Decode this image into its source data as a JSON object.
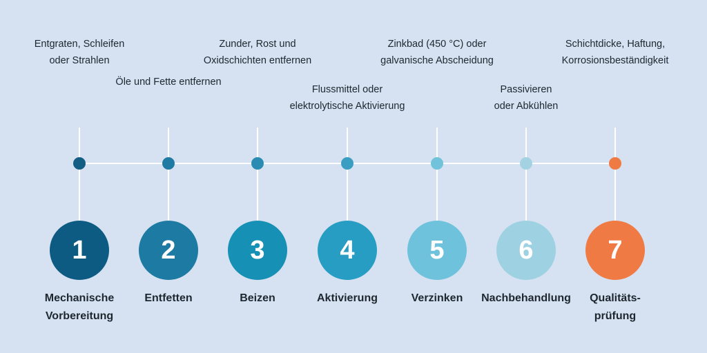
{
  "steps": [
    {
      "number": "1",
      "title_line1": "Mechanische",
      "title_line2": "Vorbereitung",
      "desc_line1": "Entgraten, Schleifen",
      "desc_line2": "oder Strahlen",
      "color": "#0d5a82",
      "dot_color": "#145e84"
    },
    {
      "number": "2",
      "title_line1": "Entfetten",
      "title_line2": "",
      "desc_line1": "Öle und Fette entfernen",
      "desc_line2": "",
      "color": "#1c7aa3",
      "dot_color": "#1f7ba3"
    },
    {
      "number": "3",
      "title_line1": "Beizen",
      "title_line2": "",
      "desc_line1": "Zunder, Rost und",
      "desc_line2": "Oxidschichten entfernen",
      "color": "#1690b5",
      "dot_color": "#2a8cb3"
    },
    {
      "number": "4",
      "title_line1": "Aktivierung",
      "title_line2": "",
      "desc_line1": "Flussmittel oder",
      "desc_line2": "elektrolytische Aktivierung",
      "color": "#279dc3",
      "dot_color": "#3a9dc2"
    },
    {
      "number": "5",
      "title_line1": "Verzinken",
      "title_line2": "",
      "desc_line1": "Zinkbad (450 °C) oder",
      "desc_line2": "galvanische Abscheidung",
      "color": "#6ec2dc",
      "dot_color": "#70c3db"
    },
    {
      "number": "6",
      "title_line1": "Nachbehandlung",
      "title_line2": "",
      "desc_line1": "Passivieren",
      "desc_line2": "oder Abkühlen",
      "color": "#9ed2e2",
      "dot_color": "#a3d3e3"
    },
    {
      "number": "7",
      "title_line1": "Qualitäts-",
      "title_line2": "prüfung",
      "desc_line1": "Schichtdicke, Haftung,",
      "desc_line2": "Korrosionsbeständigkeit",
      "color": "#f07a44",
      "dot_color": "#f07a44"
    }
  ]
}
